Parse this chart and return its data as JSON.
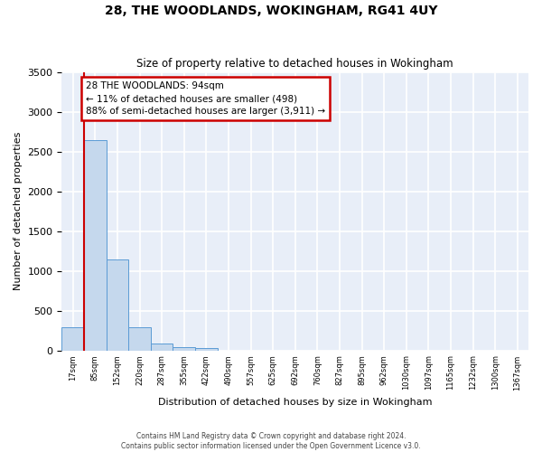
{
  "title": "28, THE WOODLANDS, WOKINGHAM, RG41 4UY",
  "subtitle": "Size of property relative to detached houses in Wokingham",
  "xlabel": "Distribution of detached houses by size in Wokingham",
  "ylabel": "Number of detached properties",
  "bar_color": "#c5d8ed",
  "bar_edge_color": "#5b9bd5",
  "background_color": "#e8eef8",
  "grid_color": "#ffffff",
  "ylim": [
    0,
    3500
  ],
  "yticks": [
    0,
    500,
    1000,
    1500,
    2000,
    2500,
    3000,
    3500
  ],
  "bin_labels": [
    "17sqm",
    "85sqm",
    "152sqm",
    "220sqm",
    "287sqm",
    "355sqm",
    "422sqm",
    "490sqm",
    "557sqm",
    "625sqm",
    "692sqm",
    "760sqm",
    "827sqm",
    "895sqm",
    "962sqm",
    "1030sqm",
    "1097sqm",
    "1165sqm",
    "1232sqm",
    "1300sqm",
    "1367sqm"
  ],
  "bar_values": [
    290,
    2640,
    1145,
    295,
    90,
    40,
    30,
    0,
    0,
    0,
    0,
    0,
    0,
    0,
    0,
    0,
    0,
    0,
    0,
    0,
    0
  ],
  "annotation_text": "28 THE WOODLANDS: 94sqm\n← 11% of detached houses are smaller (498)\n88% of semi-detached houses are larger (3,911) →",
  "annotation_box_color": "#ffffff",
  "annotation_edge_color": "#cc0000",
  "red_line_color": "#cc0000",
  "red_line_x": 0.5,
  "footer_line1": "Contains HM Land Registry data © Crown copyright and database right 2024.",
  "footer_line2": "Contains public sector information licensed under the Open Government Licence v3.0."
}
